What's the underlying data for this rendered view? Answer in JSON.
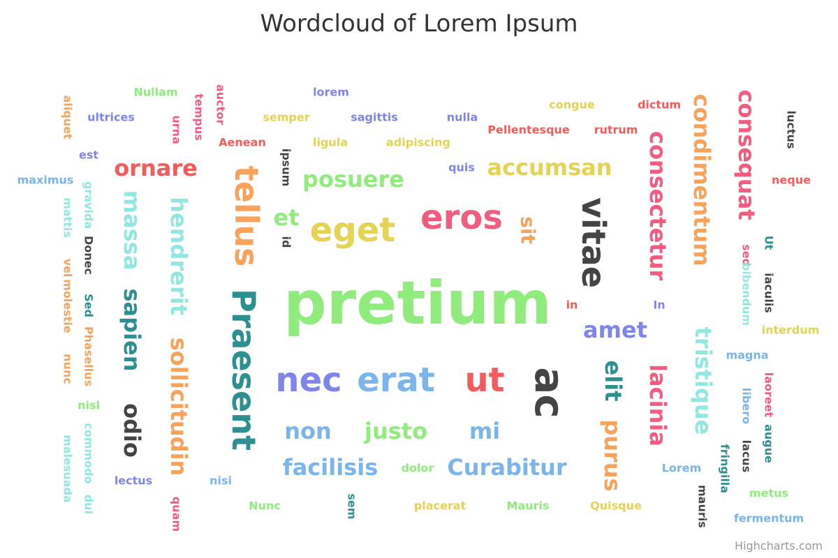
{
  "chart_data": {
    "type": "wordcloud",
    "title": "Wordcloud of Lorem Ipsum",
    "words": [
      {
        "name": "pretium",
        "weight": 10,
        "color": "#90ed7d"
      },
      {
        "name": "Praesent",
        "weight": 6,
        "color": "#2b908f"
      },
      {
        "name": "tellus",
        "weight": 6,
        "color": "#f7a35c"
      },
      {
        "name": "ac",
        "weight": 6,
        "color": "#434348"
      },
      {
        "name": "vitae",
        "weight": 5,
        "color": "#434348"
      },
      {
        "name": "eros",
        "weight": 5,
        "color": "#f15c80"
      },
      {
        "name": "eget",
        "weight": 5,
        "color": "#e4d354"
      },
      {
        "name": "ut",
        "weight": 5,
        "color": "#f45b5b"
      },
      {
        "name": "nec",
        "weight": 5,
        "color": "#8085e9"
      },
      {
        "name": "erat",
        "weight": 5,
        "color": "#7cb5ec"
      },
      {
        "name": "consequat",
        "weight": 4,
        "color": "#f15c80"
      },
      {
        "name": "condimentum",
        "weight": 4,
        "color": "#f7a35c"
      },
      {
        "name": "consectetur",
        "weight": 4,
        "color": "#f15c80"
      },
      {
        "name": "hendrerit",
        "weight": 4,
        "color": "#91e8e1"
      },
      {
        "name": "sollicitudin",
        "weight": 4,
        "color": "#f7a35c"
      },
      {
        "name": "massa",
        "weight": 4,
        "color": "#91e8e1"
      },
      {
        "name": "sapien",
        "weight": 4,
        "color": "#2b908f"
      },
      {
        "name": "odio",
        "weight": 4,
        "color": "#434348"
      },
      {
        "name": "tristique",
        "weight": 4,
        "color": "#91e8e1"
      },
      {
        "name": "lacinia",
        "weight": 4,
        "color": "#f15c80"
      },
      {
        "name": "purus",
        "weight": 4,
        "color": "#f7a35c"
      },
      {
        "name": "elit",
        "weight": 4,
        "color": "#2b908f"
      },
      {
        "name": "accumsan",
        "weight": 4,
        "color": "#e4d354"
      },
      {
        "name": "posuere",
        "weight": 4,
        "color": "#90ed7d"
      },
      {
        "name": "ornare",
        "weight": 4,
        "color": "#f45b5b"
      },
      {
        "name": "amet",
        "weight": 4,
        "color": "#8085e9"
      },
      {
        "name": "Curabitur",
        "weight": 4,
        "color": "#7cb5ec"
      },
      {
        "name": "facilisis",
        "weight": 4,
        "color": "#7cb5ec"
      },
      {
        "name": "justo",
        "weight": 4,
        "color": "#90ed7d"
      },
      {
        "name": "non",
        "weight": 4,
        "color": "#7cb5ec"
      },
      {
        "name": "mi",
        "weight": 4,
        "color": "#7cb5ec"
      },
      {
        "name": "et",
        "weight": 4,
        "color": "#90ed7d"
      },
      {
        "name": "sit",
        "weight": 3,
        "color": "#f7a35c"
      },
      {
        "name": "Nullam",
        "weight": 1,
        "color": "#90ed7d"
      },
      {
        "name": "lorem",
        "weight": 1,
        "color": "#8085e9"
      },
      {
        "name": "ultrices",
        "weight": 1,
        "color": "#8085e9"
      },
      {
        "name": "semper",
        "weight": 1,
        "color": "#e4d354"
      },
      {
        "name": "sagittis",
        "weight": 1,
        "color": "#8085e9"
      },
      {
        "name": "nulla",
        "weight": 1,
        "color": "#8085e9"
      },
      {
        "name": "congue",
        "weight": 1,
        "color": "#e4d354"
      },
      {
        "name": "dictum",
        "weight": 1,
        "color": "#f45b5b"
      },
      {
        "name": "Pellentesque",
        "weight": 1,
        "color": "#f45b5b"
      },
      {
        "name": "rutrum",
        "weight": 1,
        "color": "#f45b5b"
      },
      {
        "name": "Aenean",
        "weight": 1,
        "color": "#f45b5b"
      },
      {
        "name": "ligula",
        "weight": 1,
        "color": "#e4d354"
      },
      {
        "name": "adipiscing",
        "weight": 1,
        "color": "#e4d354"
      },
      {
        "name": "est",
        "weight": 1,
        "color": "#8085e9"
      },
      {
        "name": "quis",
        "weight": 1,
        "color": "#8085e9"
      },
      {
        "name": "maximus",
        "weight": 1,
        "color": "#7cb5ec"
      },
      {
        "name": "neque",
        "weight": 1,
        "color": "#f45b5b"
      },
      {
        "name": "in",
        "weight": 1,
        "color": "#f45b5b"
      },
      {
        "name": "In",
        "weight": 1,
        "color": "#8085e9"
      },
      {
        "name": "interdum",
        "weight": 1,
        "color": "#e4d354"
      },
      {
        "name": "magna",
        "weight": 1,
        "color": "#7cb5ec"
      },
      {
        "name": "nisl",
        "weight": 1,
        "color": "#90ed7d"
      },
      {
        "name": "lectus",
        "weight": 1,
        "color": "#8085e9"
      },
      {
        "name": "nisi",
        "weight": 1,
        "color": "#7cb5ec"
      },
      {
        "name": "dolor",
        "weight": 1,
        "color": "#90ed7d"
      },
      {
        "name": "Lorem",
        "weight": 1,
        "color": "#7cb5ec"
      },
      {
        "name": "metus",
        "weight": 1,
        "color": "#90ed7d"
      },
      {
        "name": "Nunc",
        "weight": 1,
        "color": "#90ed7d"
      },
      {
        "name": "placerat",
        "weight": 1,
        "color": "#e4d354"
      },
      {
        "name": "Mauris",
        "weight": 1,
        "color": "#90ed7d"
      },
      {
        "name": "Quisque",
        "weight": 1,
        "color": "#e4d354"
      },
      {
        "name": "fermentum",
        "weight": 1,
        "color": "#7cb5ec"
      },
      {
        "name": "aliquet",
        "weight": 1,
        "color": "#f7a35c"
      },
      {
        "name": "urna",
        "weight": 1,
        "color": "#f15c80"
      },
      {
        "name": "tempus",
        "weight": 1,
        "color": "#f15c80"
      },
      {
        "name": "auctor",
        "weight": 1,
        "color": "#f15c80"
      },
      {
        "name": "ipsum",
        "weight": 1,
        "color": "#434348"
      },
      {
        "name": "id",
        "weight": 1,
        "color": "#434348"
      },
      {
        "name": "luctus",
        "weight": 1,
        "color": "#434348"
      },
      {
        "name": "gravida",
        "weight": 1,
        "color": "#91e8e1"
      },
      {
        "name": "mattis",
        "weight": 1,
        "color": "#91e8e1"
      },
      {
        "name": "Donec",
        "weight": 1,
        "color": "#434348"
      },
      {
        "name": "vel",
        "weight": 1,
        "color": "#f7a35c"
      },
      {
        "name": "molestie",
        "weight": 1,
        "color": "#f7a35c"
      },
      {
        "name": "nunc",
        "weight": 1,
        "color": "#f7a35c"
      },
      {
        "name": "Sed",
        "weight": 1,
        "color": "#2b908f"
      },
      {
        "name": "Phasellus",
        "weight": 1,
        "color": "#f7a35c"
      },
      {
        "name": "commodo",
        "weight": 1,
        "color": "#91e8e1"
      },
      {
        "name": "dui",
        "weight": 1,
        "color": "#91e8e1"
      },
      {
        "name": "malesuada",
        "weight": 1,
        "color": "#91e8e1"
      },
      {
        "name": "quam",
        "weight": 1,
        "color": "#f15c80"
      },
      {
        "name": "sem",
        "weight": 1,
        "color": "#2b908f"
      },
      {
        "name": "mauris",
        "weight": 1,
        "color": "#434348"
      },
      {
        "name": "fringilla",
        "weight": 1,
        "color": "#2b908f"
      },
      {
        "name": "lacus",
        "weight": 1,
        "color": "#434348"
      },
      {
        "name": "libero",
        "weight": 1,
        "color": "#7cb5ec"
      },
      {
        "name": "laoreet",
        "weight": 1,
        "color": "#f15c80"
      },
      {
        "name": "augue",
        "weight": 1,
        "color": "#2b908f"
      },
      {
        "name": "sed",
        "weight": 1,
        "color": "#f15c80"
      },
      {
        "name": "bibendum",
        "weight": 1,
        "color": "#91e8e1"
      },
      {
        "name": "Ut",
        "weight": 1,
        "color": "#2b908f"
      },
      {
        "name": "iaculis",
        "weight": 1,
        "color": "#434348"
      }
    ]
  },
  "credits": "Highcharts.com"
}
